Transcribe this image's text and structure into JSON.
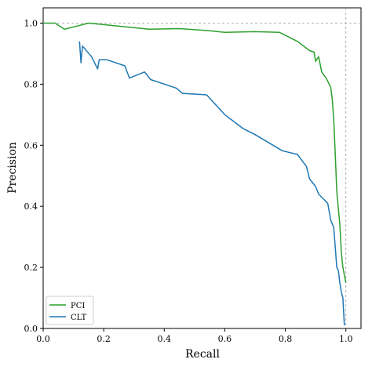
{
  "chart_data": {
    "type": "line",
    "xlabel": "Recall",
    "ylabel": "Precision",
    "xlim": [
      0.0,
      1.05
    ],
    "ylim": [
      0.0,
      1.05
    ],
    "xticks": [
      "0.0",
      "0.2",
      "0.4",
      "0.6",
      "0.8",
      "1.0"
    ],
    "yticks": [
      "0.0",
      "0.2",
      "0.4",
      "0.6",
      "0.8",
      "1.0"
    ],
    "grid": false,
    "reference_lines": {
      "x": 1.0,
      "y": 1.0,
      "style": "dashed",
      "color": "#999999"
    },
    "legend_position": "lower-left",
    "series": [
      {
        "name": "PCI",
        "color": "#2ca02c",
        "x": [
          0.0,
          0.04,
          0.07,
          0.15,
          0.25,
          0.35,
          0.45,
          0.55,
          0.6,
          0.7,
          0.78,
          0.84,
          0.88,
          0.895,
          0.9,
          0.91,
          0.92,
          0.935,
          0.95,
          0.955,
          0.96,
          0.965,
          0.97,
          0.98,
          0.985,
          0.99,
          1.0
        ],
        "y": [
          1.0,
          1.0,
          0.98,
          1.0,
          0.99,
          0.98,
          0.982,
          0.975,
          0.97,
          0.972,
          0.97,
          0.94,
          0.91,
          0.905,
          0.875,
          0.89,
          0.84,
          0.82,
          0.79,
          0.75,
          0.68,
          0.57,
          0.45,
          0.34,
          0.25,
          0.2,
          0.15
        ]
      },
      {
        "name": "CLT",
        "color": "#1f77b4",
        "x": [
          0.12,
          0.125,
          0.13,
          0.16,
          0.18,
          0.185,
          0.21,
          0.27,
          0.285,
          0.335,
          0.355,
          0.44,
          0.46,
          0.54,
          0.6,
          0.66,
          0.7,
          0.79,
          0.84,
          0.87,
          0.88,
          0.9,
          0.91,
          0.94,
          0.95,
          0.96,
          0.97,
          0.975,
          0.98,
          0.985,
          0.99,
          0.995
        ],
        "y": [
          0.94,
          0.87,
          0.925,
          0.89,
          0.85,
          0.88,
          0.88,
          0.86,
          0.82,
          0.84,
          0.815,
          0.787,
          0.77,
          0.765,
          0.7,
          0.655,
          0.635,
          0.582,
          0.57,
          0.53,
          0.49,
          0.465,
          0.44,
          0.41,
          0.355,
          0.33,
          0.2,
          0.19,
          0.15,
          0.12,
          0.1,
          0.01
        ]
      }
    ]
  }
}
